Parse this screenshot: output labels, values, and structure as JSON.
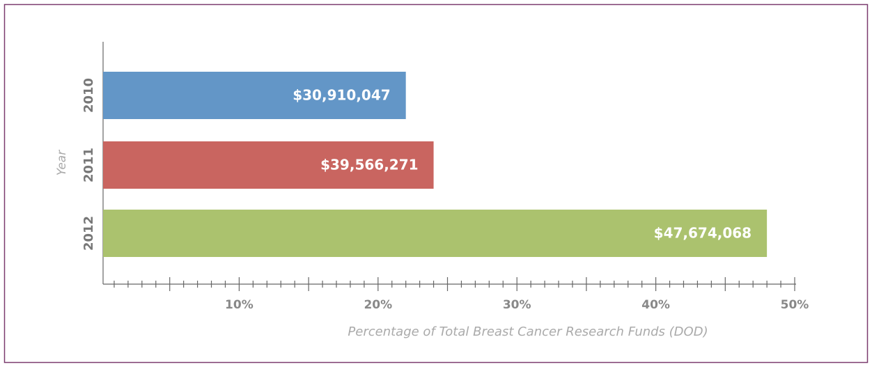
{
  "chart_data": {
    "type": "barh",
    "categories": [
      "2010",
      "2011",
      "2012"
    ],
    "values": [
      22,
      24,
      48
    ],
    "bar_labels": [
      "$30,910,047",
      "$39,566,271",
      "$47,674,068"
    ],
    "colors": [
      "#6396c7",
      "#c96560",
      "#abc26e"
    ],
    "xlim": [
      0,
      50
    ],
    "xticks": [
      {
        "value": 10,
        "label": "10%"
      },
      {
        "value": 20,
        "label": "20%"
      },
      {
        "value": 30,
        "label": "30%"
      },
      {
        "value": 40,
        "label": "40%"
      },
      {
        "value": 50,
        "label": "50%"
      }
    ],
    "minor_xticks": [
      1,
      2,
      3,
      4,
      5,
      6,
      7,
      8,
      9,
      11,
      12,
      13,
      14,
      15,
      16,
      17,
      18,
      19,
      21,
      22,
      23,
      24,
      25,
      26,
      27,
      28,
      29,
      31,
      32,
      33,
      34,
      35,
      36,
      37,
      38,
      39,
      41,
      42,
      43,
      44,
      45,
      46,
      47,
      48,
      49
    ],
    "xlabel": "Percentage of Total Breast Cancer Research Funds (DOD)",
    "ylabel": "Year"
  }
}
